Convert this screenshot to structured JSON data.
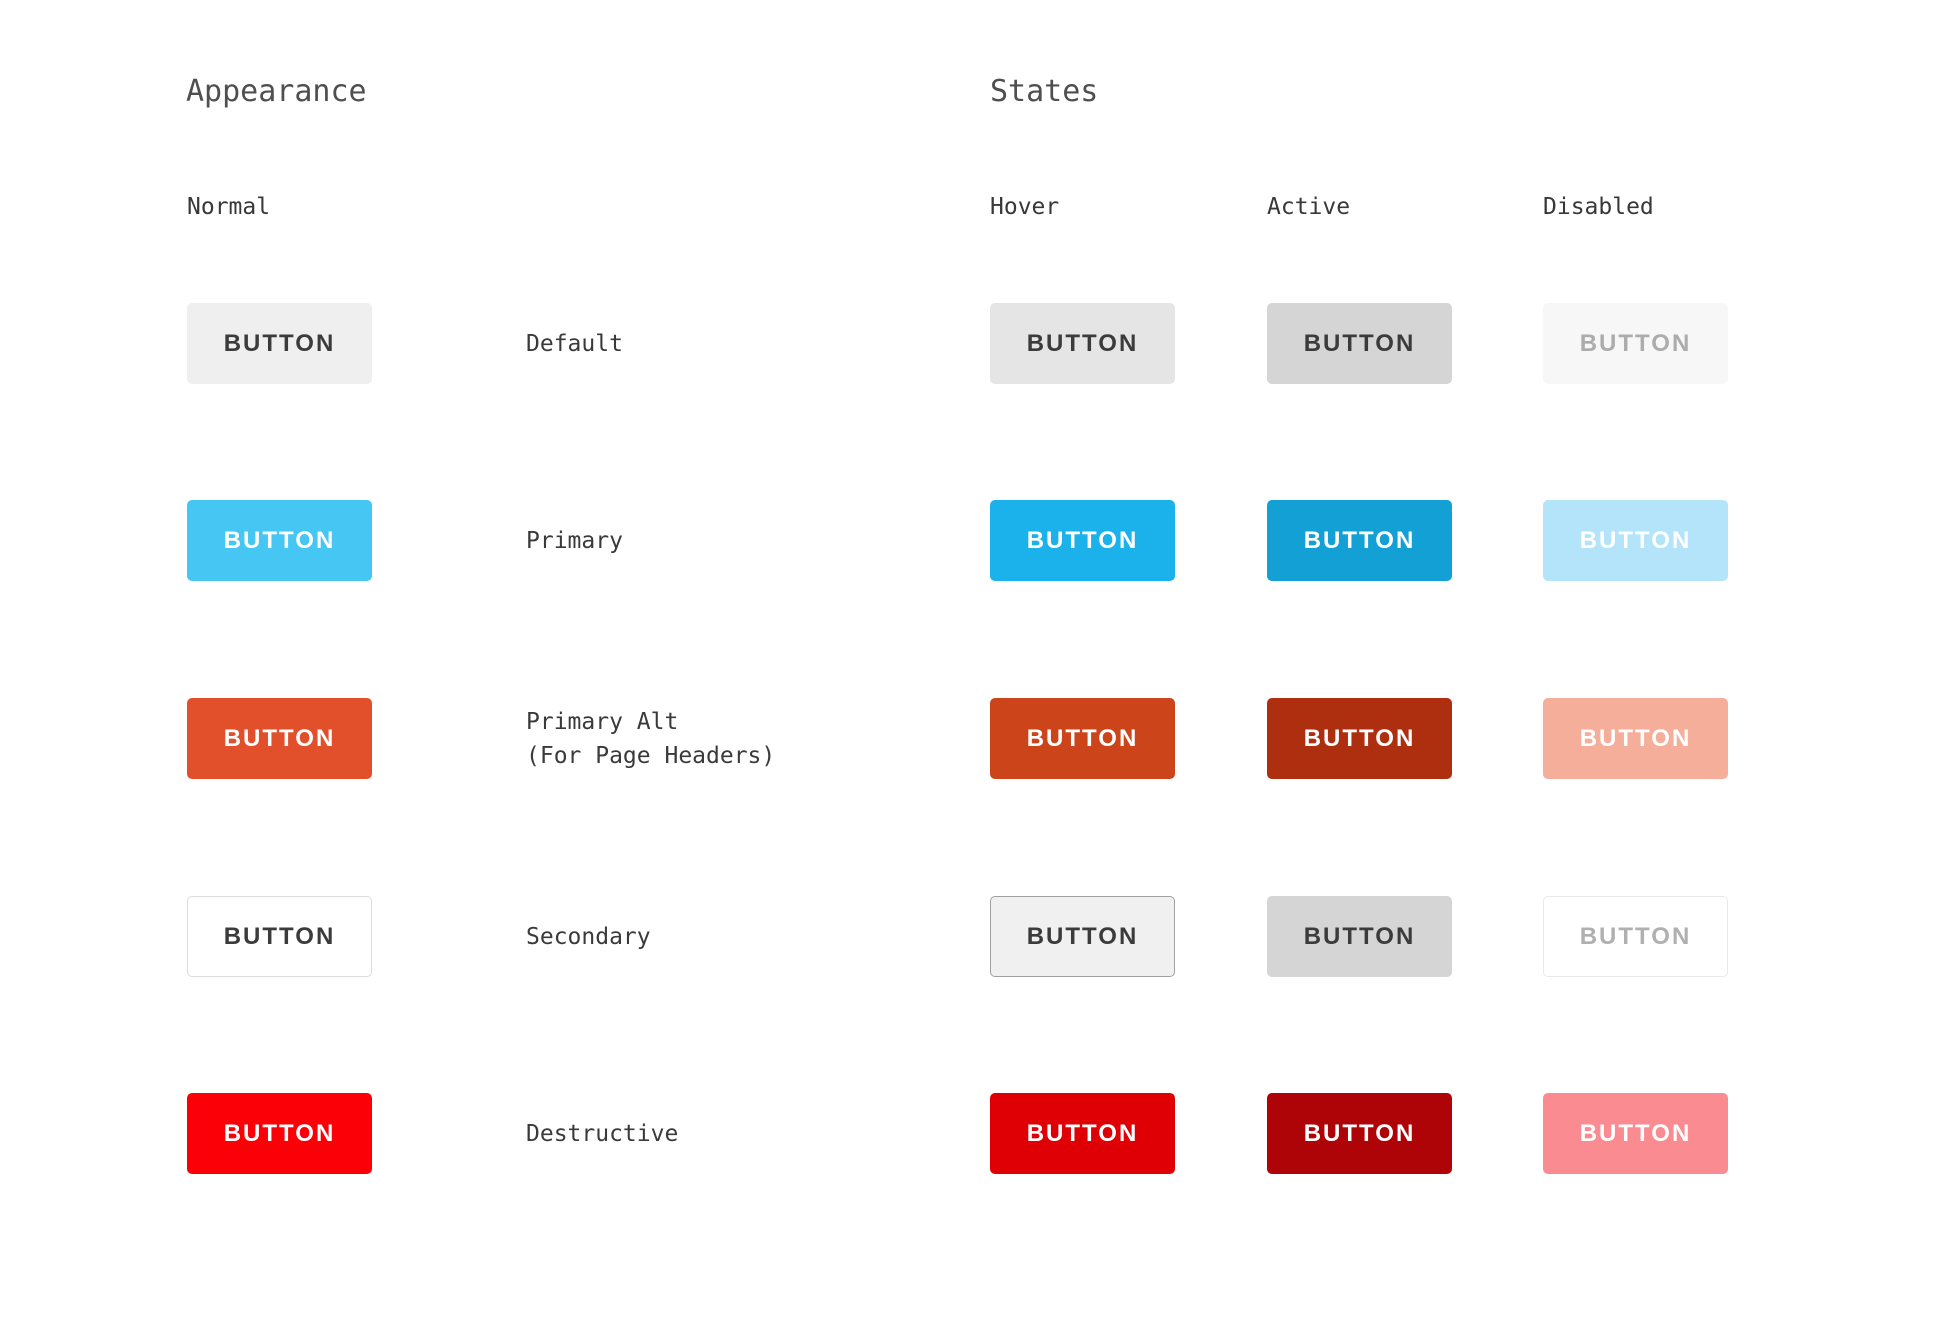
{
  "page": {
    "background": "#ffffff",
    "headings": {
      "appearance": "Appearance",
      "states": "States"
    },
    "columns": {
      "normal": "Normal",
      "hover": "Hover",
      "active": "Active",
      "disabled": "Disabled"
    },
    "text_colors": {
      "heading": "#4f4f4f",
      "column_label": "#383838",
      "variant_label": "#3a3a3a"
    }
  },
  "button_label": "BUTTON",
  "variants": [
    {
      "label": "Default",
      "states": {
        "normal": {
          "bg": "#efefef",
          "fg": "#3b3b3b",
          "border": "transparent"
        },
        "hover": {
          "bg": "#e5e5e5",
          "fg": "#3b3b3b",
          "border": "transparent"
        },
        "active": {
          "bg": "#d5d5d5",
          "fg": "#3b3b3b",
          "border": "transparent"
        },
        "disabled": {
          "bg": "#f7f7f7",
          "fg": "#acacac",
          "border": "transparent"
        }
      }
    },
    {
      "label": "Primary",
      "states": {
        "normal": {
          "bg": "#45c6f3",
          "fg": "#ffffff",
          "border": "transparent"
        },
        "hover": {
          "bg": "#1bb2ec",
          "fg": "#ffffff",
          "border": "transparent"
        },
        "active": {
          "bg": "#13a0d5",
          "fg": "#ffffff",
          "border": "transparent"
        },
        "disabled": {
          "bg": "#b4e4fa",
          "fg": "#ffffff",
          "border": "transparent"
        }
      }
    },
    {
      "label": "Primary Alt",
      "label_line2": "(For Page Headers)",
      "states": {
        "normal": {
          "bg": "#e2502b",
          "fg": "#ffffff",
          "border": "transparent"
        },
        "hover": {
          "bg": "#cc4419",
          "fg": "#ffffff",
          "border": "transparent"
        },
        "active": {
          "bg": "#ad2f10",
          "fg": "#ffffff",
          "border": "transparent"
        },
        "disabled": {
          "bg": "#f4ae99",
          "fg": "#ffffff",
          "border": "transparent"
        }
      }
    },
    {
      "label": "Secondary",
      "states": {
        "normal": {
          "bg": "#ffffff",
          "fg": "#3b3b3b",
          "border": "#dcdcdc"
        },
        "hover": {
          "bg": "#f0f0f0",
          "fg": "#3b3b3b",
          "border": "#a0a0a0"
        },
        "active": {
          "bg": "#d5d5d5",
          "fg": "#3b3b3b",
          "border": "#d5d5d5"
        },
        "disabled": {
          "bg": "#ffffff",
          "fg": "#b0b0b0",
          "border": "#e9e9e9"
        }
      }
    },
    {
      "label": "Destructive",
      "states": {
        "normal": {
          "bg": "#fb0006",
          "fg": "#ffffff",
          "border": "transparent"
        },
        "hover": {
          "bg": "#de0004",
          "fg": "#ffffff",
          "border": "transparent"
        },
        "active": {
          "bg": "#ae0307",
          "fg": "#ffffff",
          "border": "transparent"
        },
        "disabled": {
          "bg": "#fa8b90",
          "fg": "#ffffff",
          "border": "transparent"
        }
      }
    }
  ]
}
